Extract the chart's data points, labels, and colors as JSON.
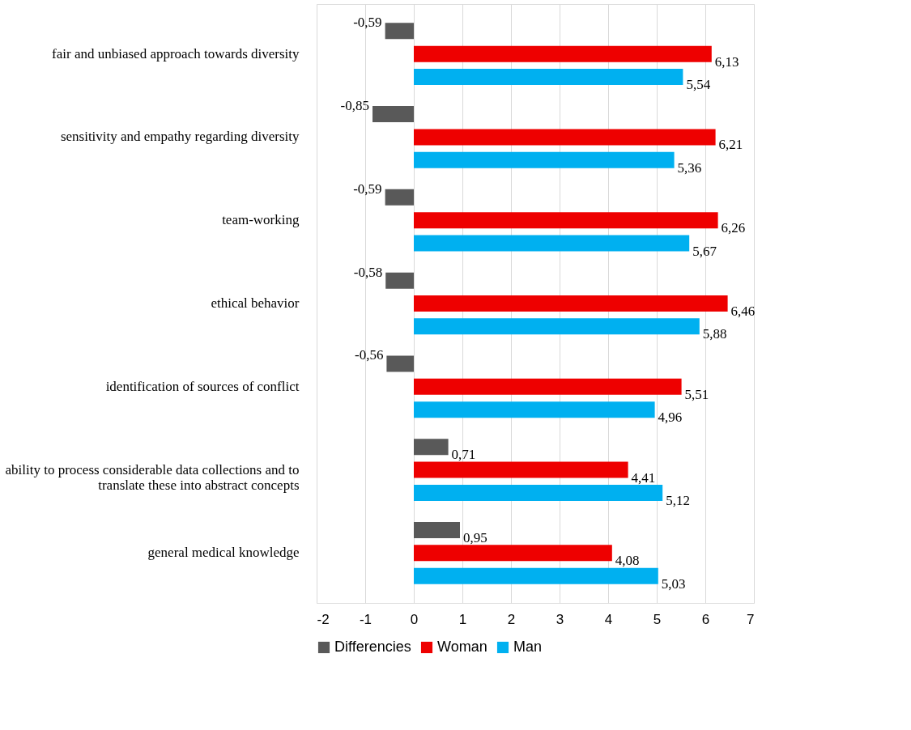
{
  "chart_data": {
    "type": "bar",
    "orientation": "horizontal",
    "categories": [
      "fair and unbiased approach towards diversity",
      "sensitivity and empathy regarding diversity",
      "team-working",
      "ethical behavior",
      "identification of sources of conflict",
      "ability to process considerable data collections and to translate these into abstract concepts",
      "general medical knowledge"
    ],
    "series": [
      {
        "name": "Differencies",
        "color": "#595959",
        "values": [
          -0.59,
          -0.85,
          -0.59,
          -0.58,
          -0.56,
          0.71,
          0.95
        ],
        "value_labels": [
          "-0,59",
          "-0,85",
          "-0,59",
          "-0,58",
          "-0,56",
          "0,71",
          "0,95"
        ]
      },
      {
        "name": "Woman",
        "color": "#ee0000",
        "values": [
          6.13,
          6.21,
          6.26,
          6.46,
          5.51,
          4.41,
          4.08
        ],
        "value_labels": [
          "6,13",
          "6,21",
          "6,26",
          "6,46",
          "5,51",
          "4,41",
          "4,08"
        ]
      },
      {
        "name": "Man",
        "color": "#00b0f0",
        "values": [
          5.54,
          5.36,
          5.67,
          5.88,
          4.96,
          5.12,
          5.03
        ],
        "value_labels": [
          "5,54",
          "5,36",
          "5,67",
          "5,88",
          "4,96",
          "5,12",
          "5,03"
        ]
      }
    ],
    "xlim": [
      -2,
      7
    ],
    "xticks": [
      -2,
      -1,
      0,
      1,
      2,
      3,
      4,
      5,
      6,
      7
    ],
    "grid": "x",
    "legend": "bottom"
  }
}
